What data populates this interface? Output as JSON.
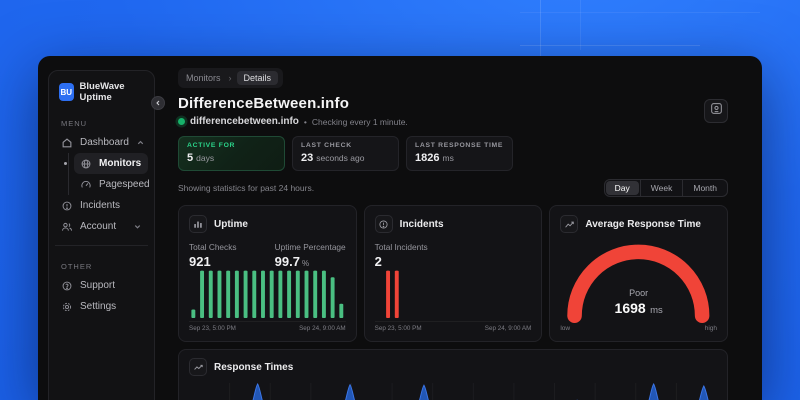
{
  "background": {
    "color": "#2068f0"
  },
  "sidebar": {
    "logo": "BU",
    "brand": "BlueWave Uptime",
    "menu_label": "MENU",
    "other_label": "OTHER",
    "items": [
      {
        "label": "Dashboard",
        "icon": "home-icon",
        "chevron": "up"
      },
      {
        "label": "Monitors",
        "icon": "globe-icon",
        "active": true
      },
      {
        "label": "Pagespeed",
        "icon": "speedometer-icon"
      },
      {
        "label": "Incidents",
        "icon": "alert-circle-icon"
      },
      {
        "label": "Account",
        "icon": "users-icon",
        "chevron": "down"
      }
    ],
    "other_items": [
      {
        "label": "Support",
        "icon": "help-circle-icon"
      },
      {
        "label": "Settings",
        "icon": "gear-icon"
      }
    ]
  },
  "breadcrumb": {
    "parent": "Monitors",
    "separator": "›",
    "current": "Details"
  },
  "header": {
    "title": "DifferenceBetween.info",
    "monitor_url": "differencebetween.info",
    "status_color": "#17b26a",
    "bullet": "•",
    "check_note": "Checking every 1 minute."
  },
  "stat_cards": [
    {
      "label": "ACTIVE FOR",
      "value": "5",
      "unit": "days",
      "accent": "#2bd48a"
    },
    {
      "label": "LAST CHECK",
      "value": "23",
      "unit": "seconds ago"
    },
    {
      "label": "LAST RESPONSE TIME",
      "value": "1826",
      "unit": "ms"
    }
  ],
  "stats_note": "Showing statistics for past 24 hours.",
  "range_toggle": {
    "options": [
      "Day",
      "Week",
      "Month"
    ],
    "selected": "Day"
  },
  "chart_data": [
    {
      "type": "bar",
      "title": "Uptime",
      "icon": "bar-chart-icon",
      "stats": [
        {
          "label": "Total Checks",
          "value": "921",
          "unit": ""
        },
        {
          "label": "Uptime Percentage",
          "value": "99.7",
          "unit": "%"
        }
      ],
      "values": [
        0.18,
        1,
        1,
        1,
        1,
        1,
        1,
        1,
        1,
        1,
        1,
        1,
        1,
        1,
        1,
        1,
        0.86,
        0.3
      ],
      "bar_color": "#4abf82",
      "x_start": "Sep 23, 5:00 PM",
      "x_end": "Sep 24, 9:00 AM"
    },
    {
      "type": "bar",
      "title": "Incidents",
      "icon": "alert-circle-icon",
      "stats": [
        {
          "label": "Total Incidents",
          "value": "2",
          "unit": ""
        }
      ],
      "values": [
        0,
        1,
        1,
        0,
        0,
        0,
        0,
        0,
        0,
        0,
        0,
        0,
        0,
        0,
        0,
        0,
        0,
        0
      ],
      "bar_color": "#f04438",
      "x_start": "Sep 23, 5:00 PM",
      "x_end": "Sep 24, 9:00 AM"
    },
    {
      "type": "gauge",
      "title": "Average Response Time",
      "icon": "trend-icon",
      "label": "Poor",
      "value": "1698",
      "unit": "ms",
      "arc_color": "#f04438",
      "fraction": 1,
      "min_label": "low",
      "max_label": "high"
    },
    {
      "type": "area",
      "title": "Response Times",
      "icon": "line-chart-icon",
      "color": "#2257b6",
      "stroke": "#3b76e8",
      "spikes": [
        {
          "x": 0.13,
          "h": 1.0
        },
        {
          "x": 0.305,
          "h": 0.97
        },
        {
          "x": 0.445,
          "h": 0.95
        },
        {
          "x": 0.735,
          "h": 0.35
        },
        {
          "x": 0.88,
          "h": 1.0
        },
        {
          "x": 0.975,
          "h": 0.92
        }
      ]
    }
  ]
}
